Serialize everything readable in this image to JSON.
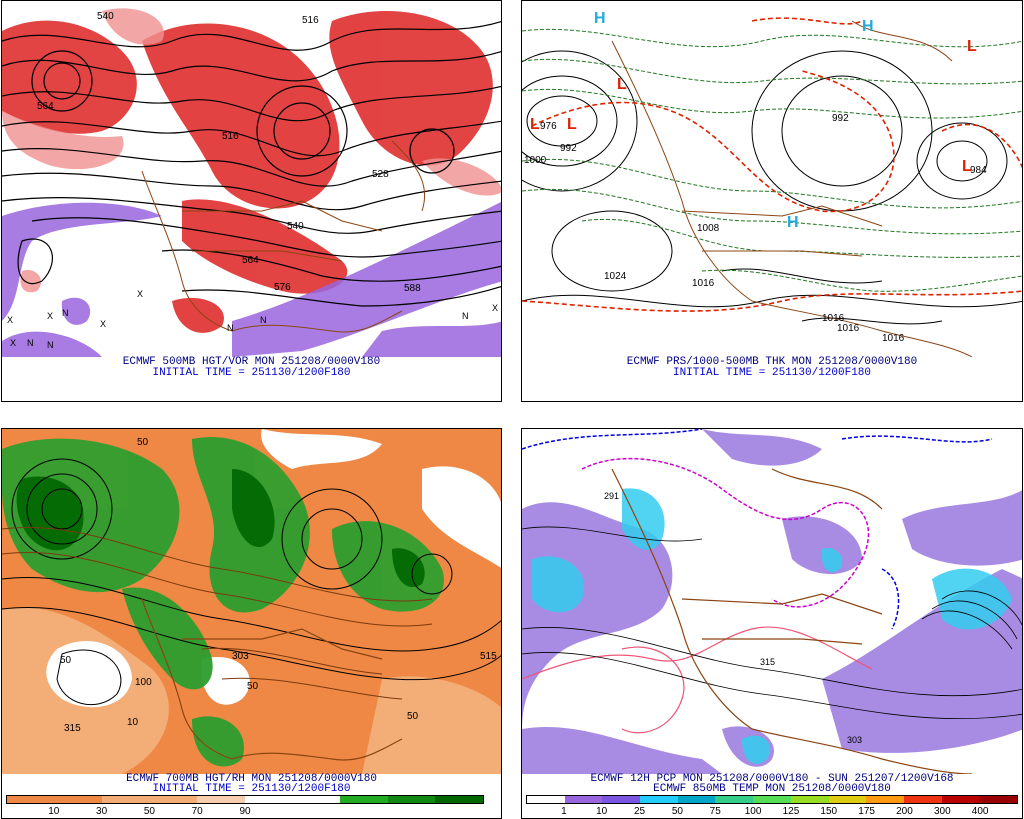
{
  "panels": [
    {
      "id": "tl",
      "line1": "ECMWF 500MB HGT/VOR MON 251208/0000V180",
      "line2": "INITIAL TIME = 251130/1200F180",
      "labels": [
        "540",
        "564",
        "516",
        "540",
        "564",
        "576",
        "588",
        "516",
        "528"
      ],
      "marks": [
        "X",
        "N",
        "X",
        "N",
        "X",
        "N",
        "N",
        "X",
        "N",
        "X",
        "X",
        "N"
      ]
    },
    {
      "id": "tr",
      "line1": "ECMWF PRS/1000-500MB THK MON 251208/0000V180",
      "line2": "INITIAL TIME = 251130/1200F180",
      "labels": [
        "976",
        "992",
        "1000",
        "1024",
        "1016",
        "1008",
        "992",
        "984",
        "1016",
        "1016",
        "1016"
      ],
      "marks": [
        "L",
        "L",
        "L",
        "L",
        "H",
        "H",
        "H",
        "L"
      ]
    },
    {
      "id": "bl",
      "line1": "ECMWF 700MB HGT/RH MON 251208/0000V180",
      "line2": "INITIAL TIME = 251130/1200F180",
      "labels": [
        "50",
        "100",
        "315",
        "10",
        "303",
        "50",
        "50",
        "515",
        "50"
      ],
      "colorbar": {
        "colors": [
          "#ee8844",
          "#ee8844",
          "#f3ad77",
          "#f3ad77",
          "#f7cfae",
          "#ffffff",
          "#ffffff",
          "#22aa22",
          "#118811",
          "#006600"
        ],
        "ticks": [
          "10",
          "30",
          "50",
          "70",
          "90"
        ]
      }
    },
    {
      "id": "br",
      "line1": "ECMWF 12H PCP MON 251208/0000V180 - SUN 251207/1200V168",
      "line2": "ECMWF 850MB TEMP MON 251208/0000V180",
      "labels": [
        "315",
        "303",
        "291"
      ],
      "colorbar": {
        "colors": [
          "#ffffff",
          "#9966dd",
          "#7a55e0",
          "#22ccff",
          "#00a6c8",
          "#33cc88",
          "#55dd55",
          "#99dd22",
          "#ddcc11",
          "#ff9911",
          "#ee3311",
          "#bb0000",
          "#990000"
        ],
        "ticks": [
          "1",
          "10",
          "25",
          "50",
          "75",
          "100",
          "125",
          "150",
          "175",
          "200",
          "300",
          "400"
        ]
      }
    }
  ],
  "colors": {
    "vort_red": "#dd2222",
    "vort_pink": "#f09090",
    "vort_purple": "#9966dd",
    "contour_black": "#000000",
    "thk_red": "#dd2200",
    "thk_green": "#227722",
    "rh_green": "#2e9e2e",
    "rh_orange": "#ee8844",
    "border_brown": "#8b4513",
    "pcp_purple": "#9977dd",
    "pcp_cyan": "#33ccee",
    "temp_blue": "#0000dd",
    "temp_magenta": "#cc00cc"
  }
}
